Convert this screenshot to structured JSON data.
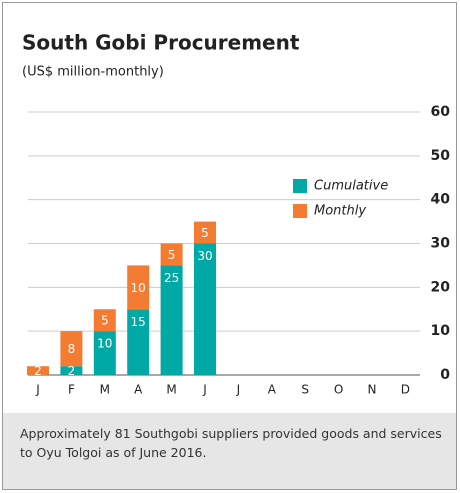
{
  "chart_data": {
    "type": "bar",
    "stacked": true,
    "title": "South Gobi Procurement",
    "subtitle": "(US$ million-monthly)",
    "categories": [
      "J",
      "F",
      "M",
      "A",
      "M",
      "J",
      "J",
      "A",
      "S",
      "O",
      "N",
      "D"
    ],
    "series": [
      {
        "name": "Cumulative",
        "color": "#00a9a5",
        "values": [
          null,
          2,
          10,
          15,
          25,
          30,
          null,
          null,
          null,
          null,
          null,
          null
        ]
      },
      {
        "name": "Monthly",
        "color": "#f47c32",
        "values": [
          2,
          8,
          5,
          10,
          5,
          5,
          null,
          null,
          null,
          null,
          null,
          null
        ]
      }
    ],
    "ylim": [
      0,
      60
    ],
    "yticks": [
      0,
      10,
      20,
      30,
      40,
      50,
      60
    ],
    "grid": true,
    "note": "Approximately 81 Southgobi suppliers provided goods and services to Oyu Tolgoi as of June 2016."
  }
}
